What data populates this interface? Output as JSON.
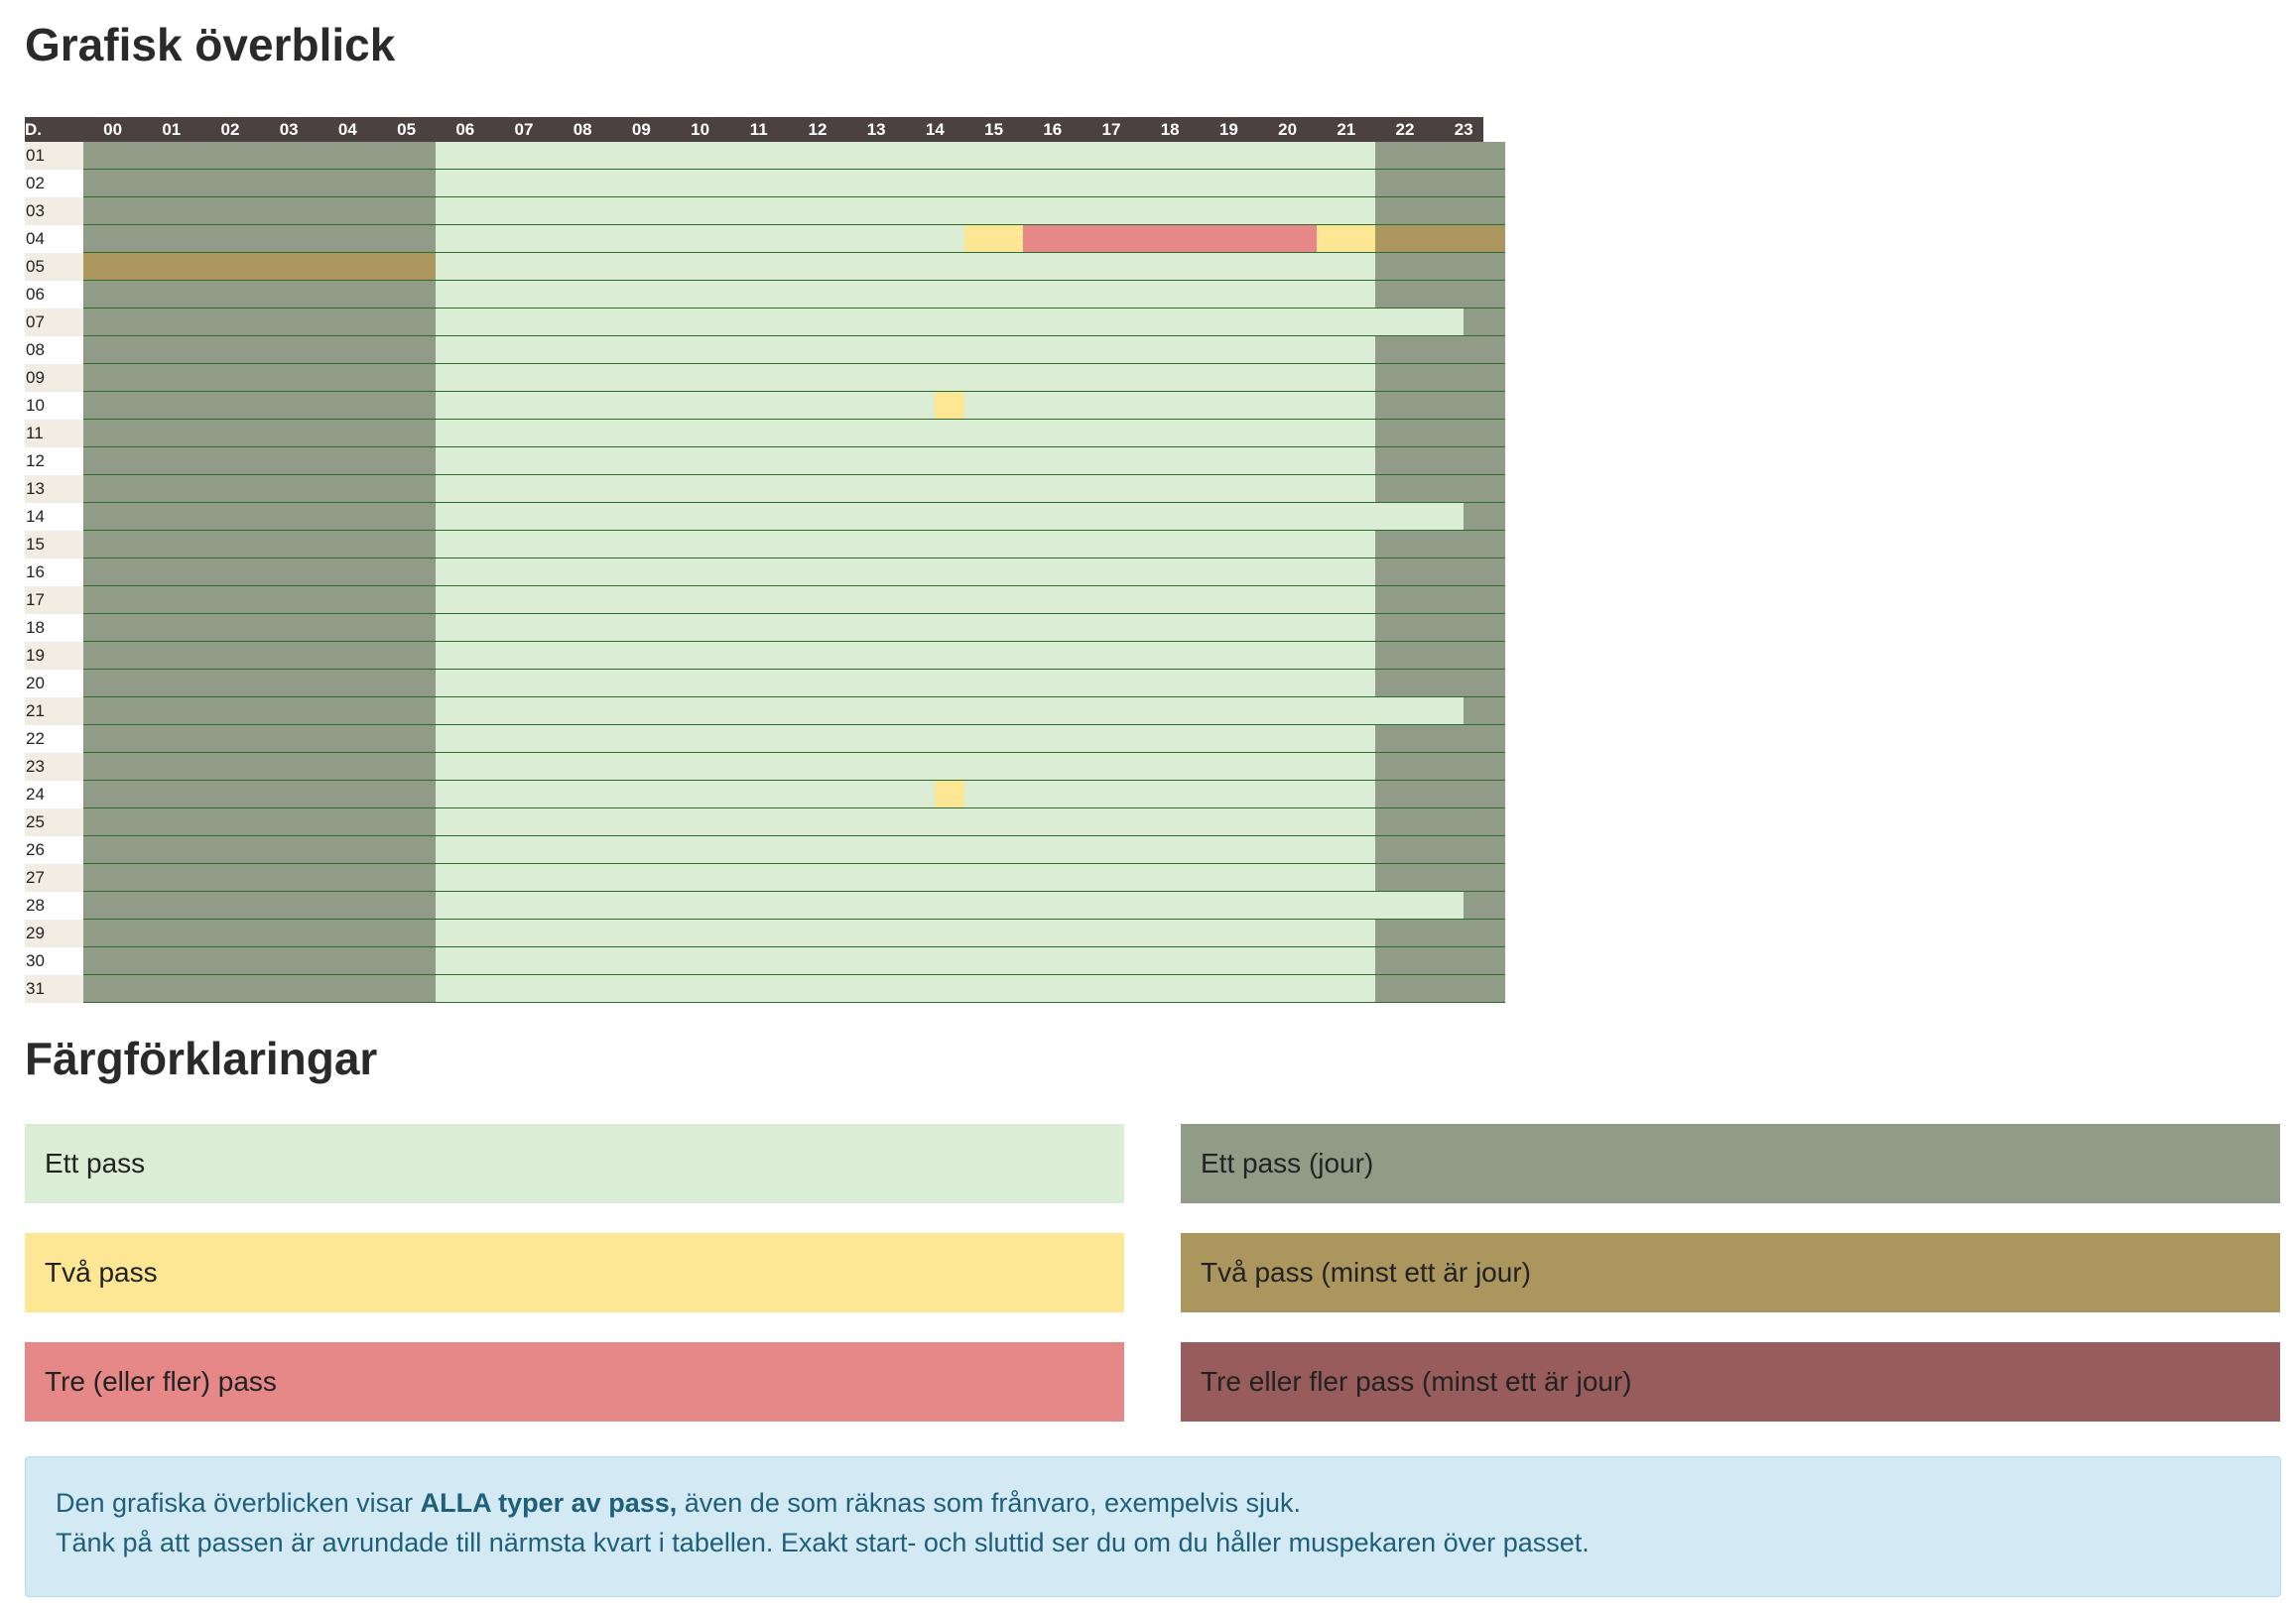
{
  "page": {
    "title": "Grafisk överblick",
    "legend_title": "Färgförklaringar"
  },
  "grid": {
    "corner_label": "D.",
    "hours": [
      "00",
      "01",
      "02",
      "03",
      "04",
      "05",
      "06",
      "07",
      "08",
      "09",
      "10",
      "11",
      "12",
      "13",
      "14",
      "15",
      "16",
      "17",
      "18",
      "19",
      "20",
      "21",
      "22",
      "23"
    ],
    "day_label_bg_odd": "#f1ede2",
    "day_label_bg_even": "#ffffff",
    "days": [
      {
        "label": "01",
        "segments": [
          [
            "jour",
            0,
            6
          ],
          [
            "ett",
            6,
            22
          ],
          [
            "jour",
            22,
            24.2
          ]
        ]
      },
      {
        "label": "02",
        "segments": [
          [
            "jour",
            0,
            6
          ],
          [
            "ett",
            6,
            22
          ],
          [
            "jour",
            22,
            24.2
          ]
        ]
      },
      {
        "label": "03",
        "segments": [
          [
            "jour",
            0,
            6
          ],
          [
            "ett",
            6,
            22
          ],
          [
            "jour",
            22,
            24.2
          ]
        ]
      },
      {
        "label": "04",
        "segments": [
          [
            "jour",
            0,
            6
          ],
          [
            "ett",
            6,
            15
          ],
          [
            "tva",
            15,
            16
          ],
          [
            "tre",
            16,
            21
          ],
          [
            "tva",
            21,
            22
          ],
          [
            "tva_jour",
            22,
            24.2
          ]
        ]
      },
      {
        "label": "05",
        "segments": [
          [
            "tva_jour",
            0,
            6
          ],
          [
            "ett",
            6,
            22
          ],
          [
            "jour",
            22,
            24.2
          ]
        ]
      },
      {
        "label": "06",
        "segments": [
          [
            "jour",
            0,
            6
          ],
          [
            "ett",
            6,
            22
          ],
          [
            "jour",
            22,
            24.2
          ]
        ]
      },
      {
        "label": "07",
        "segments": [
          [
            "jour",
            0,
            6
          ],
          [
            "ett",
            6,
            23.5
          ],
          [
            "jour",
            23.5,
            24.2
          ]
        ]
      },
      {
        "label": "08",
        "segments": [
          [
            "jour",
            0,
            6
          ],
          [
            "ett",
            6,
            22
          ],
          [
            "jour",
            22,
            24.2
          ]
        ]
      },
      {
        "label": "09",
        "segments": [
          [
            "jour",
            0,
            6
          ],
          [
            "ett",
            6,
            22
          ],
          [
            "jour",
            22,
            24.2
          ]
        ]
      },
      {
        "label": "10",
        "segments": [
          [
            "jour",
            0,
            6
          ],
          [
            "ett",
            6,
            14.5
          ],
          [
            "tva",
            14.5,
            15
          ],
          [
            "ett",
            15,
            22
          ],
          [
            "jour",
            22,
            24.2
          ]
        ]
      },
      {
        "label": "11",
        "segments": [
          [
            "jour",
            0,
            6
          ],
          [
            "ett",
            6,
            22
          ],
          [
            "jour",
            22,
            24.2
          ]
        ]
      },
      {
        "label": "12",
        "segments": [
          [
            "jour",
            0,
            6
          ],
          [
            "ett",
            6,
            22
          ],
          [
            "jour",
            22,
            24.2
          ]
        ]
      },
      {
        "label": "13",
        "segments": [
          [
            "jour",
            0,
            6
          ],
          [
            "ett",
            6,
            22
          ],
          [
            "jour",
            22,
            24.2
          ]
        ]
      },
      {
        "label": "14",
        "segments": [
          [
            "jour",
            0,
            6
          ],
          [
            "ett",
            6,
            23.5
          ],
          [
            "jour",
            23.5,
            24.2
          ]
        ]
      },
      {
        "label": "15",
        "segments": [
          [
            "jour",
            0,
            6
          ],
          [
            "ett",
            6,
            22
          ],
          [
            "jour",
            22,
            24.2
          ]
        ]
      },
      {
        "label": "16",
        "segments": [
          [
            "jour",
            0,
            6
          ],
          [
            "ett",
            6,
            22
          ],
          [
            "jour",
            22,
            24.2
          ]
        ]
      },
      {
        "label": "17",
        "segments": [
          [
            "jour",
            0,
            6
          ],
          [
            "ett",
            6,
            22
          ],
          [
            "jour",
            22,
            24.2
          ]
        ]
      },
      {
        "label": "18",
        "segments": [
          [
            "jour",
            0,
            6
          ],
          [
            "ett",
            6,
            22
          ],
          [
            "jour",
            22,
            24.2
          ]
        ]
      },
      {
        "label": "19",
        "segments": [
          [
            "jour",
            0,
            6
          ],
          [
            "ett",
            6,
            22
          ],
          [
            "jour",
            22,
            24.2
          ]
        ]
      },
      {
        "label": "20",
        "segments": [
          [
            "jour",
            0,
            6
          ],
          [
            "ett",
            6,
            22
          ],
          [
            "jour",
            22,
            24.2
          ]
        ]
      },
      {
        "label": "21",
        "segments": [
          [
            "jour",
            0,
            6
          ],
          [
            "ett",
            6,
            23.5
          ],
          [
            "jour",
            23.5,
            24.2
          ]
        ]
      },
      {
        "label": "22",
        "segments": [
          [
            "jour",
            0,
            6
          ],
          [
            "ett",
            6,
            22
          ],
          [
            "jour",
            22,
            24.2
          ]
        ]
      },
      {
        "label": "23",
        "segments": [
          [
            "jour",
            0,
            6
          ],
          [
            "ett",
            6,
            22
          ],
          [
            "jour",
            22,
            24.2
          ]
        ]
      },
      {
        "label": "24",
        "segments": [
          [
            "jour",
            0,
            6
          ],
          [
            "ett",
            6,
            14.5
          ],
          [
            "tva",
            14.5,
            15
          ],
          [
            "ett",
            15,
            22
          ],
          [
            "jour",
            22,
            24.2
          ]
        ]
      },
      {
        "label": "25",
        "segments": [
          [
            "jour",
            0,
            6
          ],
          [
            "ett",
            6,
            22
          ],
          [
            "jour",
            22,
            24.2
          ]
        ]
      },
      {
        "label": "26",
        "segments": [
          [
            "jour",
            0,
            6
          ],
          [
            "ett",
            6,
            22
          ],
          [
            "jour",
            22,
            24.2
          ]
        ]
      },
      {
        "label": "27",
        "segments": [
          [
            "jour",
            0,
            6
          ],
          [
            "ett",
            6,
            22
          ],
          [
            "jour",
            22,
            24.2
          ]
        ]
      },
      {
        "label": "28",
        "segments": [
          [
            "jour",
            0,
            6
          ],
          [
            "ett",
            6,
            23.5
          ],
          [
            "jour",
            23.5,
            24.2
          ]
        ]
      },
      {
        "label": "29",
        "segments": [
          [
            "jour",
            0,
            6
          ],
          [
            "ett",
            6,
            22
          ],
          [
            "jour",
            22,
            24.2
          ]
        ]
      },
      {
        "label": "30",
        "segments": [
          [
            "jour",
            0,
            6
          ],
          [
            "ett",
            6,
            22
          ],
          [
            "jour",
            22,
            24.2
          ]
        ]
      },
      {
        "label": "31",
        "segments": [
          [
            "jour",
            0,
            6
          ],
          [
            "ett",
            6,
            22
          ],
          [
            "jour",
            22,
            24.2
          ]
        ]
      }
    ]
  },
  "colors": {
    "ett": "#dbedd4",
    "jour": "#909b88",
    "tva": "#fde794",
    "tva_jour": "#ab965e",
    "tre": "#e68888",
    "tre_jour": "#995c5c"
  },
  "legend": [
    {
      "key": "ett",
      "label": "Ett pass"
    },
    {
      "key": "jour",
      "label": "Ett pass (jour)"
    },
    {
      "key": "tva",
      "label": "Två pass"
    },
    {
      "key": "tva_jour",
      "label": "Två pass (minst ett är jour)"
    },
    {
      "key": "tre",
      "label": "Tre (eller fler) pass"
    },
    {
      "key": "tre_jour",
      "label": "Tre eller fler pass (minst ett är jour)"
    }
  ],
  "info": {
    "line1_pre": "Den grafiska överblicken visar ",
    "line1_bold": "ALLA typer av pass,",
    "line1_post": " även de som räknas som frånvaro, exempelvis sjuk.",
    "line2": "Tänk på att passen är avrundade till närmsta kvart i tabellen. Exakt start- och sluttid ser du om du håller muspekaren över passet."
  }
}
